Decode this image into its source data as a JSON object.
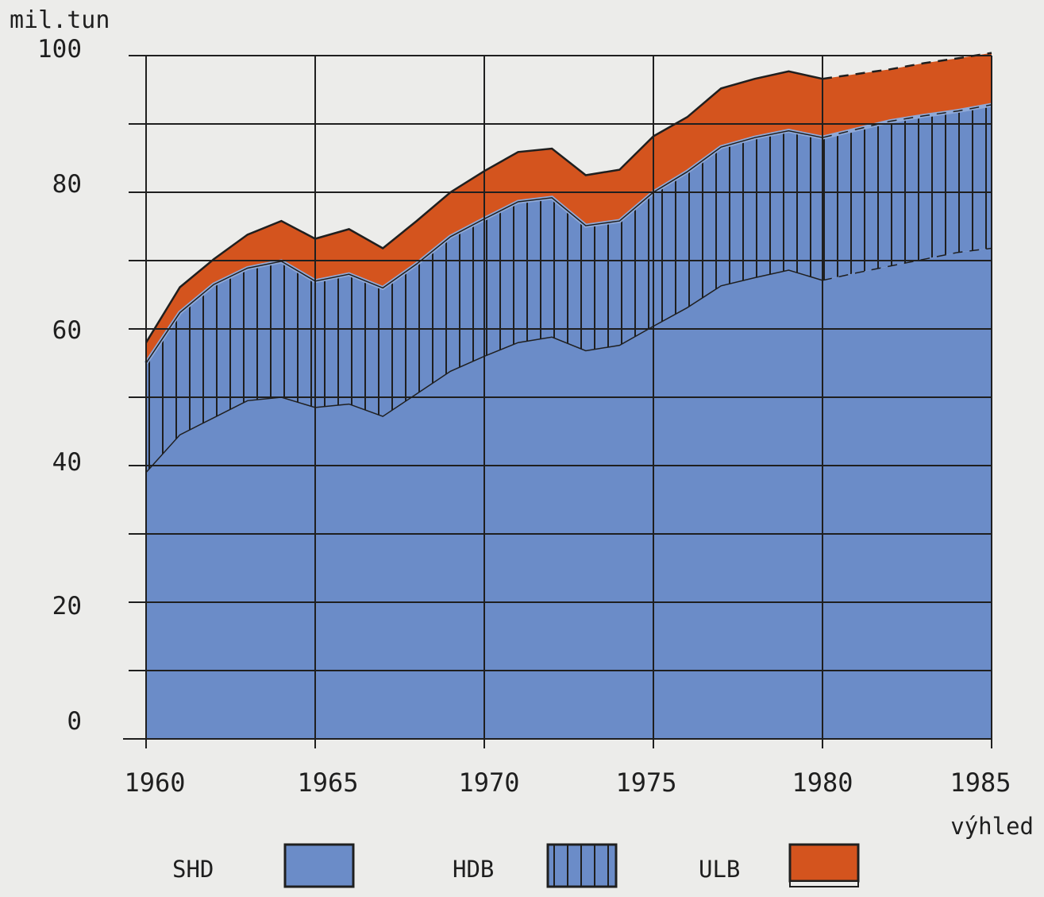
{
  "chart_data": {
    "type": "area",
    "stacked": true,
    "ylabel": "mil.tun",
    "ylim": [
      0,
      100
    ],
    "yticks": [
      "0",
      "20",
      "40",
      "60",
      "80",
      "100"
    ],
    "xlim": [
      1960,
      1985
    ],
    "xticks": [
      "1960",
      "1965",
      "1970",
      "1975",
      "1980",
      "1985"
    ],
    "forecast_label": "výhled",
    "forecast_from": 1980,
    "x": [
      1960,
      1961,
      1962,
      1963,
      1964,
      1965,
      1966,
      1967,
      1968,
      1969,
      1970,
      1971,
      1972,
      1973,
      1974,
      1975,
      1976,
      1977,
      1978,
      1979,
      1980,
      1981,
      1982,
      1983,
      1984,
      1985
    ],
    "series": [
      {
        "name": "SHD",
        "pattern": "solid",
        "color": "#6b8cc8",
        "cumulative": [
          39,
          44.5,
          47,
          49.5,
          50,
          48.5,
          49,
          47.2,
          50.5,
          53.8,
          56,
          58,
          58.8,
          56.8,
          57.6,
          60.4,
          63.1,
          66.3,
          67.5,
          68.6,
          67.1,
          68.2,
          69.2,
          70.2,
          71.2,
          71.8
        ]
      },
      {
        "name": "HDB",
        "pattern": "vertical-hatch",
        "color": "#6b8cc8",
        "cumulative": [
          55,
          62.4,
          66.5,
          68.9,
          69.9,
          67,
          68,
          66,
          69.5,
          73.5,
          76.1,
          78.6,
          79.2,
          75.1,
          75.8,
          80,
          83,
          86.6,
          88,
          89,
          88,
          89.2,
          90.4,
          91.2,
          91.9,
          92.8
        ]
      },
      {
        "name": "ULB",
        "pattern": "solid",
        "color": "#d4541e",
        "cumulative": [
          58,
          66.1,
          70.2,
          73.8,
          75.8,
          73.2,
          74.6,
          71.8,
          75.8,
          80,
          83.1,
          85.9,
          86.4,
          82.5,
          83.3,
          88.2,
          91,
          95.2,
          96.6,
          97.7,
          96.6,
          97.3,
          98,
          98.9,
          99.6,
          100.4
        ]
      }
    ],
    "legend": [
      {
        "label": "SHD",
        "pattern": "solid",
        "color": "#6b8cc8"
      },
      {
        "label": "HDB",
        "pattern": "vertical-hatch",
        "color": "#6b8cc8"
      },
      {
        "label": "ULB",
        "pattern": "solid",
        "color": "#d4541e"
      }
    ],
    "colors": {
      "background": "#ececea",
      "blue": "#6b8cc8",
      "orange": "#d4541e",
      "ink": "#1f1f1f"
    }
  }
}
